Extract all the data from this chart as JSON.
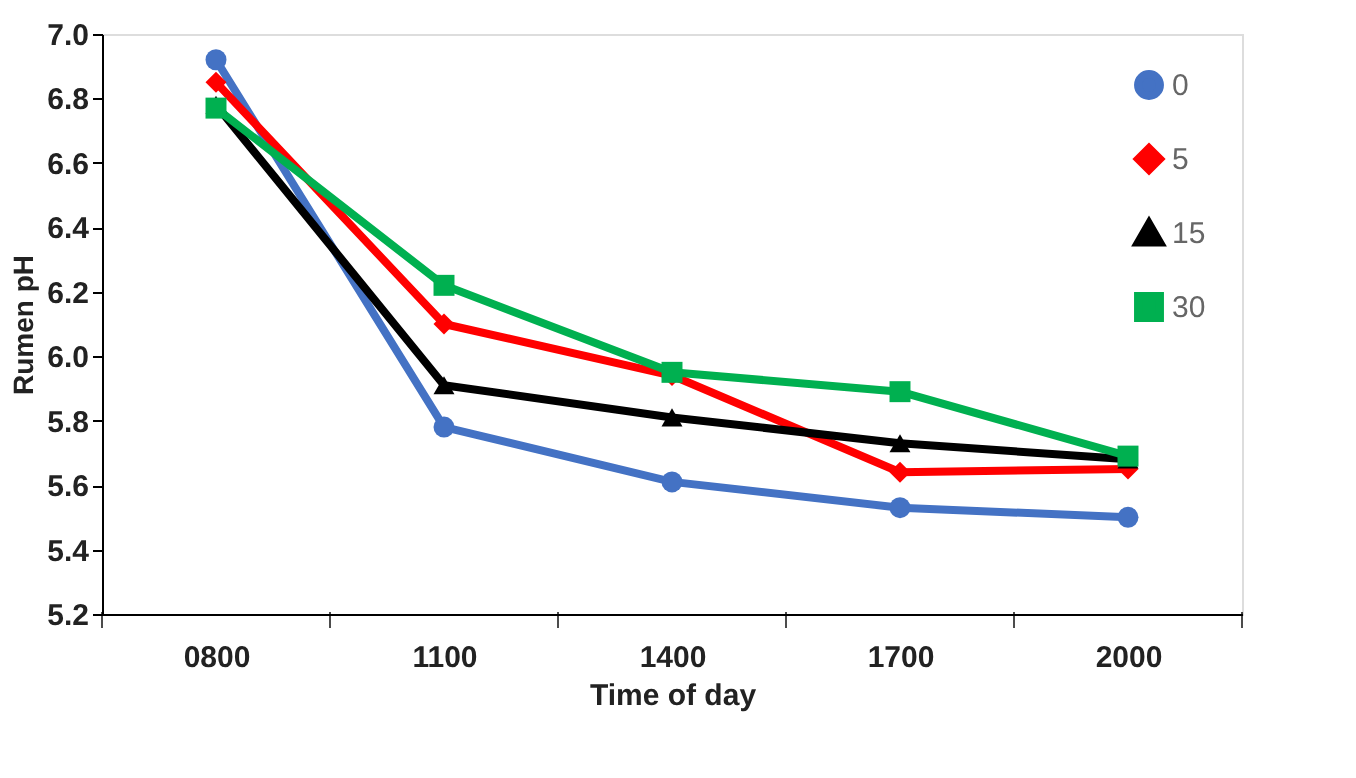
{
  "chart_data": {
    "type": "line",
    "xlabel": "Time of day",
    "ylabel": "Rumen pH",
    "categories": [
      "0800",
      "1100",
      "1400",
      "1700",
      "2000"
    ],
    "series": [
      {
        "name": "0",
        "color": "#4472c4",
        "marker": "circle",
        "values": [
          6.92,
          5.78,
          5.61,
          5.53,
          5.5
        ]
      },
      {
        "name": "5",
        "color": "#ff0000",
        "marker": "diamond",
        "values": [
          6.85,
          6.1,
          5.94,
          5.64,
          5.65
        ]
      },
      {
        "name": "15",
        "color": "#000000",
        "marker": "triangle",
        "values": [
          6.78,
          5.91,
          5.81,
          5.73,
          5.68
        ]
      },
      {
        "name": "30",
        "color": "#00b050",
        "marker": "square",
        "values": [
          6.77,
          6.22,
          5.95,
          5.89,
          5.69
        ]
      }
    ],
    "ylim": [
      5.2,
      7.0
    ],
    "yticks": [
      {
        "value": 5.2,
        "label": "5.2"
      },
      {
        "value": 5.4,
        "label": "5.4"
      },
      {
        "value": 5.6,
        "label": "5.6"
      },
      {
        "value": 5.8,
        "label": "5.8"
      },
      {
        "value": 6.0,
        "label": "6.0"
      },
      {
        "value": 6.2,
        "label": "6.2"
      },
      {
        "value": 6.4,
        "label": "6.4"
      },
      {
        "value": 6.6,
        "label": "6.6"
      },
      {
        "value": 6.8,
        "label": "6.8"
      },
      {
        "value": 7.0,
        "label": "7.0"
      }
    ],
    "grid": false,
    "legend": "top right",
    "line_style": "solid"
  }
}
